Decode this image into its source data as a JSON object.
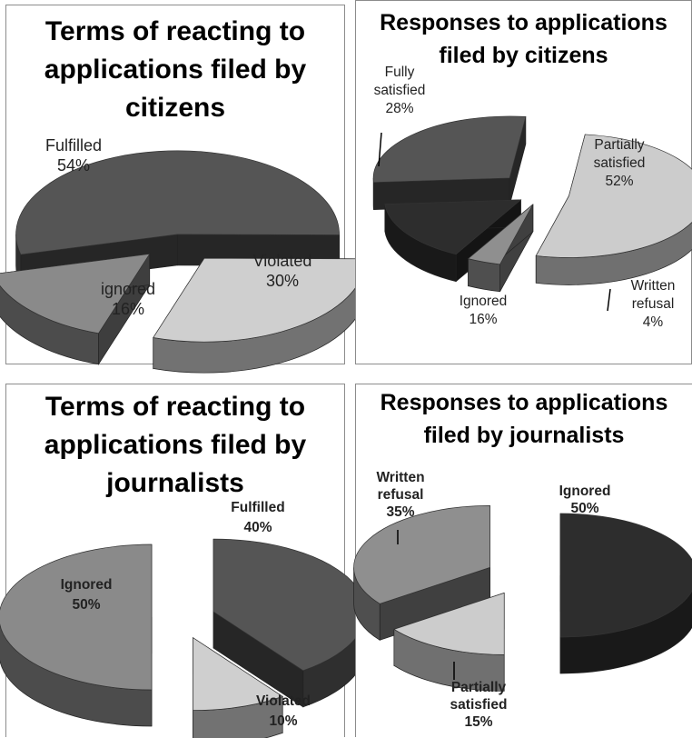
{
  "colors": {
    "fulfilled": "#555555",
    "violated": "#cfcfcf",
    "ignored_light": "#8a8a8a",
    "dark": "#2d2d2d",
    "mid": "#8f8f8f",
    "light": "#cccccc"
  },
  "chart_data": [
    {
      "type": "pie",
      "title_lines": [
        "Terms of reacting to",
        "applications filed by",
        "citizens"
      ],
      "slices": [
        {
          "label": "Fulfilled",
          "value": 54,
          "value_label": "54%"
        },
        {
          "label": "Violated",
          "value": 30,
          "value_label": "30%"
        },
        {
          "label": "ignored",
          "value": 16,
          "value_label": "16%"
        }
      ]
    },
    {
      "type": "pie",
      "title_lines": [
        "Responses to applications",
        "filed by citizens"
      ],
      "slices": [
        {
          "label_lines": [
            "Fully",
            "satisfied"
          ],
          "value": 28,
          "value_label": "28%"
        },
        {
          "label_lines": [
            "Partially",
            "satisfied"
          ],
          "value": 52,
          "value_label": "52%"
        },
        {
          "label_lines": [
            "Written",
            "refusal"
          ],
          "value": 4,
          "value_label": "4%"
        },
        {
          "label_lines": [
            "Ignored"
          ],
          "value": 16,
          "value_label": "16%"
        }
      ]
    },
    {
      "type": "pie",
      "title_lines": [
        "Terms of reacting to",
        "applications filed by",
        "journalists"
      ],
      "slices": [
        {
          "label": "Fulfilled",
          "value": 40,
          "value_label": "40%"
        },
        {
          "label": "Violated",
          "value": 10,
          "value_label": "10%"
        },
        {
          "label": "Ignored",
          "value": 50,
          "value_label": "50%"
        }
      ]
    },
    {
      "type": "pie",
      "title_lines": [
        "Responses to applications",
        "filed by journalists"
      ],
      "slices": [
        {
          "label_lines": [
            "Ignored"
          ],
          "value": 50,
          "value_label": "50%"
        },
        {
          "label_lines": [
            "Partially",
            "satisfied"
          ],
          "value": 15,
          "value_label": "15%"
        },
        {
          "label_lines": [
            "Written",
            "refusal"
          ],
          "value": 35,
          "value_label": "35%"
        }
      ]
    }
  ]
}
